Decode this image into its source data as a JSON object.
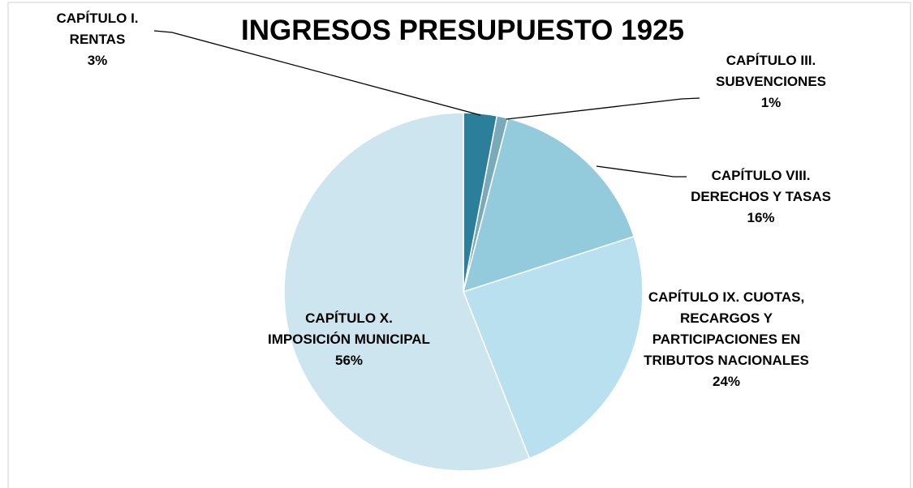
{
  "chart_data": {
    "type": "pie",
    "title": "INGRESOS PRESUPUESTO 1925",
    "categories": [
      "CAPÍTULO I. RENTAS",
      "CAPÍTULO III. SUBVENCIONES",
      "CAPÍTULO VIII. DERECHOS Y TASAS",
      "CAPÍTULO IX. CUOTAS, RECARGOS Y PARTICIPACIONES EN TRIBUTOS NACIONALES",
      "CAPÍTULO X. IMPOSICIÓN MUNICIPAL"
    ],
    "values": [
      3,
      1,
      16,
      24,
      56
    ],
    "value_labels": [
      "3%",
      "1%",
      "16%",
      "24%",
      "56%"
    ],
    "colors": [
      "#2b7f9b",
      "#7aa9ba",
      "#93cbdd",
      "#b8e0ee",
      "#cde5ef"
    ]
  }
}
